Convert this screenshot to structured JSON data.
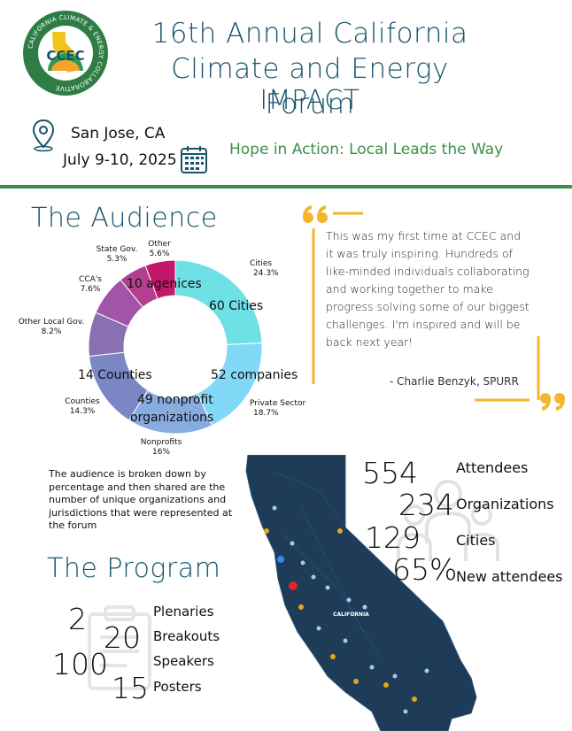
{
  "header": {
    "logo_text": "CCEC",
    "logo_ring_text": "CALIFORNIA CLIMATE & ENERGY COLLABORATIVE",
    "title_line1": "16th Annual California",
    "title_line2": "Climate and Energy Forum",
    "title_line3": "IMPACT",
    "location": "San Jose, CA",
    "dates": "July 9-10, 2025",
    "tagline": "Hope in Action: Local Leads the Way"
  },
  "audience": {
    "title": "The Audience",
    "description": "The audience is broken down by percentage and then shared are the number of unique organizations and jurisdictions that were represented at the forum",
    "segments": [
      {
        "label": "Cities",
        "percent_label": "24.3%",
        "value": 24.3,
        "color": "#6fe0e6"
      },
      {
        "label": "Private Sector",
        "percent_label": "18.7%",
        "value": 18.7,
        "color": "#82d8f7"
      },
      {
        "label": "Nonprofits",
        "percent_label": "16%",
        "value": 16.0,
        "color": "#88acdf"
      },
      {
        "label": "Counties",
        "percent_label": "14.3%",
        "value": 14.3,
        "color": "#7b86c4"
      },
      {
        "label": "Other Local Gov.",
        "percent_label": "8.2%",
        "value": 8.2,
        "color": "#8a6fb3"
      },
      {
        "label": "CCA's",
        "percent_label": "7.6%",
        "value": 7.6,
        "color": "#a254a6"
      },
      {
        "label": "State Gov.",
        "percent_label": "5.3%",
        "value": 5.3,
        "color": "#b33f8f"
      },
      {
        "label": "Other",
        "percent_label": "5.6%",
        "value": 5.6,
        "color": "#c2176a"
      }
    ],
    "counts": {
      "agencies": "10 agenices",
      "cities": "60 Cities",
      "companies": "52 companies",
      "counties": "14 Counties",
      "nonprofits_line1": "49 nonprofit",
      "nonprofits_line2": "organizations"
    }
  },
  "quote": {
    "text": "This was my first time at CCEC and it was truly inspiring. Hundreds of like-minded individuals collaborating and working together to make progress solving some of our biggest challenges. I'm inspired and will be back next year!",
    "author": "- Charlie Benzyk, SPURR",
    "accent_color": "#f3b62c"
  },
  "attendance": [
    {
      "number": "554",
      "label": "Attendees"
    },
    {
      "number": "234",
      "label": "Organizations"
    },
    {
      "number": "129",
      "label": "Cities"
    },
    {
      "number": "65%",
      "label": "New attendees"
    }
  ],
  "program": {
    "title": "The Program",
    "items": [
      {
        "number": "2",
        "label": "Plenaries"
      },
      {
        "number": "20",
        "label": "Breakouts"
      },
      {
        "number": "100",
        "label": "Speakers"
      },
      {
        "number": "15",
        "label": "Posters"
      }
    ]
  },
  "map": {
    "label": "CALIFORNIA",
    "land_color": "#1e3b57"
  },
  "colors": {
    "brand_teal": "#17546a",
    "brand_green": "#3c8f4b"
  }
}
